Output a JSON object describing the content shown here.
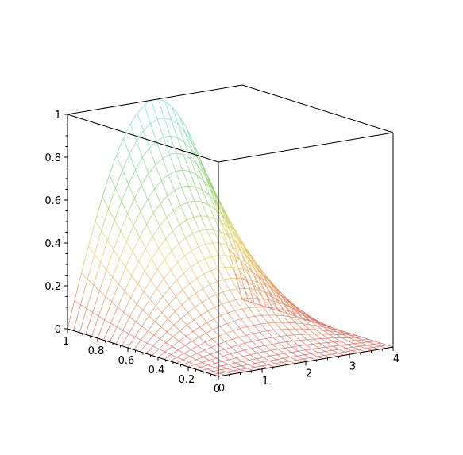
{
  "chart_data": {
    "type": "surface",
    "function": "x^2 * sin(pi*y/4)",
    "x": {
      "range": [
        0,
        1
      ],
      "ticks": [
        "0",
        "0.2",
        "0.4",
        "0.6",
        "0.8",
        "1"
      ]
    },
    "y": {
      "range": [
        0,
        4
      ],
      "ticks": [
        "0",
        "1",
        "2",
        "3",
        "4"
      ]
    },
    "z": {
      "range": [
        0,
        1
      ],
      "ticks": [
        "0",
        "0.2",
        "0.4",
        "0.6",
        "0.8",
        "1"
      ]
    },
    "grid": {
      "x_lines": 26,
      "y_lines": 26
    },
    "style": "wireframe",
    "colormap": "height: red (low) -> yellow -> cyan (high)",
    "box": true
  }
}
